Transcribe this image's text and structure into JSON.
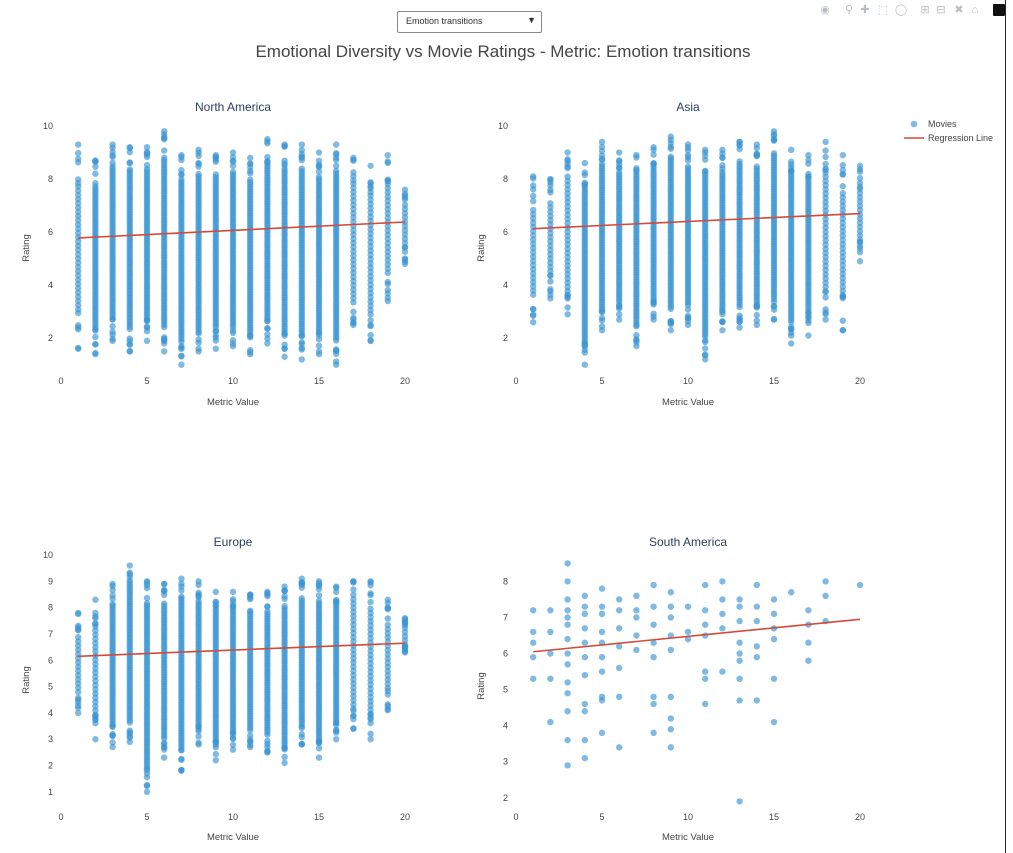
{
  "selector": {
    "value": "Emotion transitions"
  },
  "modebar": {
    "icons": [
      "camera-icon",
      "zoom-icon",
      "pan-icon",
      "box-select-icon",
      "lasso-icon",
      "zoom-in-icon",
      "zoom-out-icon",
      "autoscale-icon",
      "home-icon",
      "plotly-logo-icon"
    ]
  },
  "title": "Emotional Diversity vs Movie Ratings - Metric: Emotion transitions",
  "legend": {
    "items": [
      "Movies",
      "Regression Line"
    ]
  },
  "colors": {
    "marker": "#3a95d3",
    "regression": "#d44a3a",
    "marker_opacity": 0.65
  },
  "chart_data": [
    {
      "type": "scatter",
      "title": "North America",
      "xlabel": "Metric Value",
      "ylabel": "Rating",
      "xlim": [
        0,
        20
      ],
      "ylim": [
        0.8,
        10
      ],
      "xticks": [
        "0",
        "5",
        "10",
        "15",
        "20"
      ],
      "yticks": [
        "2",
        "4",
        "6",
        "8",
        "10"
      ],
      "yticks_values": [
        2,
        4,
        6,
        8,
        10
      ],
      "x": [
        1,
        2,
        3,
        4,
        5,
        6,
        7,
        8,
        9,
        10,
        11,
        12,
        13,
        14,
        15,
        16,
        17,
        18,
        19,
        20
      ],
      "ymin": [
        1.6,
        1.4,
        1.9,
        1.5,
        1.9,
        1.5,
        1.0,
        1.5,
        1.6,
        1.7,
        1.4,
        1.8,
        1.3,
        1.2,
        1.4,
        1.0,
        2.5,
        1.9,
        3.4,
        4.8
      ],
      "ymax": [
        9.3,
        8.7,
        9.3,
        9.2,
        9.2,
        9.8,
        8.9,
        9.1,
        8.9,
        9.0,
        8.8,
        9.5,
        9.3,
        9.3,
        9.0,
        9.3,
        8.8,
        8.5,
        8.9,
        7.6
      ],
      "density": [
        0.5,
        0.9,
        1,
        1,
        1,
        1,
        1,
        1,
        1,
        1,
        1,
        1,
        1,
        1,
        1,
        1,
        0.85,
        0.75,
        0.5,
        0.3
      ],
      "regression": {
        "x": [
          1,
          20
        ],
        "y": [
          5.78,
          6.38
        ]
      }
    },
    {
      "type": "scatter",
      "title": "Asia",
      "xlabel": "Metric Value",
      "ylabel": "Rating",
      "xlim": [
        0,
        20
      ],
      "ylim": [
        0.8,
        10
      ],
      "xticks": [
        "0",
        "5",
        "10",
        "15",
        "20"
      ],
      "yticks": [
        "2",
        "4",
        "6",
        "8",
        "10"
      ],
      "yticks_values": [
        2,
        4,
        6,
        8,
        10
      ],
      "x": [
        1,
        2,
        3,
        4,
        5,
        6,
        7,
        8,
        9,
        10,
        11,
        12,
        13,
        14,
        15,
        16,
        17,
        18,
        19,
        20
      ],
      "ymin": [
        2.6,
        3.5,
        2.9,
        1.0,
        2.3,
        2.7,
        1.7,
        2.7,
        2.3,
        2.5,
        1.2,
        2.3,
        2.4,
        2.5,
        2.7,
        1.8,
        2.1,
        2.7,
        2.3,
        4.9
      ],
      "ymax": [
        8.1,
        8.0,
        9.0,
        8.6,
        9.4,
        9.0,
        8.9,
        9.2,
        9.6,
        9.3,
        9.1,
        9.1,
        9.4,
        9.3,
        9.8,
        9.1,
        8.9,
        9.4,
        8.9,
        8.5
      ],
      "density": [
        0.35,
        0.5,
        0.8,
        1,
        1,
        1,
        1,
        1,
        1,
        1,
        1,
        1,
        1,
        1,
        1,
        1,
        0.9,
        0.7,
        0.45,
        0.3
      ],
      "regression": {
        "x": [
          1,
          20
        ],
        "y": [
          6.13,
          6.7
        ]
      }
    },
    {
      "type": "scatter",
      "title": "Europe",
      "xlabel": "Metric Value",
      "ylabel": "Rating",
      "xlim": [
        0,
        20
      ],
      "ylim": [
        0.5,
        10
      ],
      "xticks": [
        "0",
        "5",
        "10",
        "15",
        "20"
      ],
      "yticks": [
        "1",
        "2",
        "3",
        "4",
        "5",
        "6",
        "7",
        "8",
        "9",
        "10"
      ],
      "yticks_values": [
        1,
        2,
        3,
        4,
        5,
        6,
        7,
        8,
        9,
        10
      ],
      "x": [
        1,
        2,
        3,
        4,
        5,
        6,
        7,
        8,
        9,
        10,
        11,
        12,
        13,
        14,
        15,
        16,
        17,
        18,
        19,
        20
      ],
      "ymin": [
        4.0,
        3.0,
        2.7,
        2.9,
        1.0,
        2.3,
        1.8,
        2.8,
        2.2,
        2.6,
        2.7,
        2.5,
        2.1,
        2.8,
        2.3,
        3.0,
        3.4,
        3.0,
        4.1,
        6.3
      ],
      "ymax": [
        7.8,
        8.3,
        8.9,
        9.6,
        9.0,
        8.9,
        9.1,
        9.0,
        8.6,
        8.6,
        8.5,
        8.6,
        8.8,
        9.1,
        9.0,
        8.8,
        9.0,
        9.0,
        8.3,
        7.6
      ],
      "density": [
        0.4,
        0.6,
        0.9,
        1,
        1,
        1,
        1,
        1,
        1,
        1,
        1,
        1,
        1,
        1,
        1,
        1,
        0.85,
        0.7,
        0.45,
        0.3
      ],
      "regression": {
        "x": [
          1,
          20
        ],
        "y": [
          6.15,
          6.65
        ]
      }
    },
    {
      "type": "scatter",
      "title": "South America",
      "xlabel": "Metric Value",
      "ylabel": "Rating",
      "xlim": [
        0,
        20
      ],
      "ylim": [
        1.8,
        8.4
      ],
      "xticks": [
        "0",
        "5",
        "10",
        "15",
        "20"
      ],
      "yticks": [
        "2",
        "3",
        "4",
        "5",
        "6",
        "7",
        "8"
      ],
      "yticks_values": [
        2,
        3,
        4,
        5,
        6,
        7,
        8
      ],
      "points": [
        [
          1,
          7.2
        ],
        [
          1,
          6.3
        ],
        [
          1,
          5.9
        ],
        [
          1,
          5.3
        ],
        [
          1,
          6.6
        ],
        [
          2,
          7.2
        ],
        [
          2,
          6.0
        ],
        [
          2,
          5.3
        ],
        [
          2,
          4.1
        ],
        [
          2,
          6.6
        ],
        [
          3,
          8.5
        ],
        [
          3,
          8.0
        ],
        [
          3,
          7.5
        ],
        [
          3,
          7.2
        ],
        [
          3,
          7.0
        ],
        [
          3,
          6.8
        ],
        [
          3,
          6.4
        ],
        [
          3,
          6.0
        ],
        [
          3,
          5.7
        ],
        [
          3,
          5.2
        ],
        [
          3,
          4.9
        ],
        [
          3,
          4.4
        ],
        [
          3,
          3.6
        ],
        [
          3,
          2.9
        ],
        [
          4,
          7.6
        ],
        [
          4,
          7.3
        ],
        [
          4,
          7.1
        ],
        [
          4,
          6.7
        ],
        [
          4,
          6.3
        ],
        [
          4,
          5.9
        ],
        [
          4,
          5.4
        ],
        [
          4,
          4.6
        ],
        [
          4,
          4.4
        ],
        [
          4,
          3.6
        ],
        [
          4,
          3.1
        ],
        [
          5,
          7.8
        ],
        [
          5,
          7.3
        ],
        [
          5,
          7.1
        ],
        [
          5,
          6.6
        ],
        [
          5,
          6.3
        ],
        [
          5,
          5.9
        ],
        [
          5,
          5.5
        ],
        [
          5,
          4.8
        ],
        [
          5,
          4.7
        ],
        [
          5,
          3.8
        ],
        [
          6,
          7.5
        ],
        [
          6,
          7.2
        ],
        [
          6,
          6.7
        ],
        [
          6,
          6.2
        ],
        [
          6,
          5.6
        ],
        [
          6,
          4.8
        ],
        [
          6,
          3.4
        ],
        [
          7,
          7.6
        ],
        [
          7,
          7.2
        ],
        [
          7,
          7.0
        ],
        [
          7,
          6.5
        ],
        [
          7,
          6.1
        ],
        [
          8,
          7.9
        ],
        [
          8,
          7.3
        ],
        [
          8,
          6.8
        ],
        [
          8,
          6.3
        ],
        [
          8,
          5.9
        ],
        [
          8,
          4.8
        ],
        [
          8,
          4.6
        ],
        [
          8,
          3.8
        ],
        [
          9,
          7.7
        ],
        [
          9,
          7.3
        ],
        [
          9,
          7.0
        ],
        [
          9,
          6.5
        ],
        [
          9,
          6.1
        ],
        [
          9,
          4.8
        ],
        [
          9,
          4.2
        ],
        [
          9,
          3.9
        ],
        [
          9,
          3.4
        ],
        [
          10,
          7.3
        ],
        [
          10,
          6.6
        ],
        [
          10,
          6.4
        ],
        [
          11,
          7.9
        ],
        [
          11,
          7.2
        ],
        [
          11,
          6.8
        ],
        [
          11,
          6.5
        ],
        [
          11,
          5.5
        ],
        [
          11,
          5.3
        ],
        [
          11,
          4.6
        ],
        [
          12,
          8.0
        ],
        [
          12,
          7.5
        ],
        [
          12,
          7.1
        ],
        [
          12,
          6.7
        ],
        [
          12,
          5.5
        ],
        [
          13,
          7.5
        ],
        [
          13,
          7.3
        ],
        [
          13,
          6.9
        ],
        [
          13,
          6.3
        ],
        [
          13,
          6.0
        ],
        [
          13,
          5.8
        ],
        [
          13,
          5.3
        ],
        [
          13,
          4.7
        ],
        [
          13,
          1.9
        ],
        [
          14,
          7.9
        ],
        [
          14,
          7.3
        ],
        [
          14,
          6.9
        ],
        [
          14,
          6.2
        ],
        [
          14,
          5.9
        ],
        [
          14,
          4.7
        ],
        [
          15,
          7.5
        ],
        [
          15,
          7.1
        ],
        [
          15,
          6.7
        ],
        [
          15,
          6.4
        ],
        [
          15,
          5.3
        ],
        [
          15,
          4.1
        ],
        [
          16,
          7.7
        ],
        [
          17,
          7.2
        ],
        [
          17,
          6.8
        ],
        [
          17,
          6.3
        ],
        [
          17,
          5.8
        ],
        [
          18,
          8.0
        ],
        [
          18,
          7.6
        ],
        [
          18,
          6.9
        ],
        [
          20,
          7.9
        ]
      ],
      "regression": {
        "x": [
          1,
          20
        ],
        "y": [
          6.05,
          6.95
        ]
      }
    }
  ]
}
